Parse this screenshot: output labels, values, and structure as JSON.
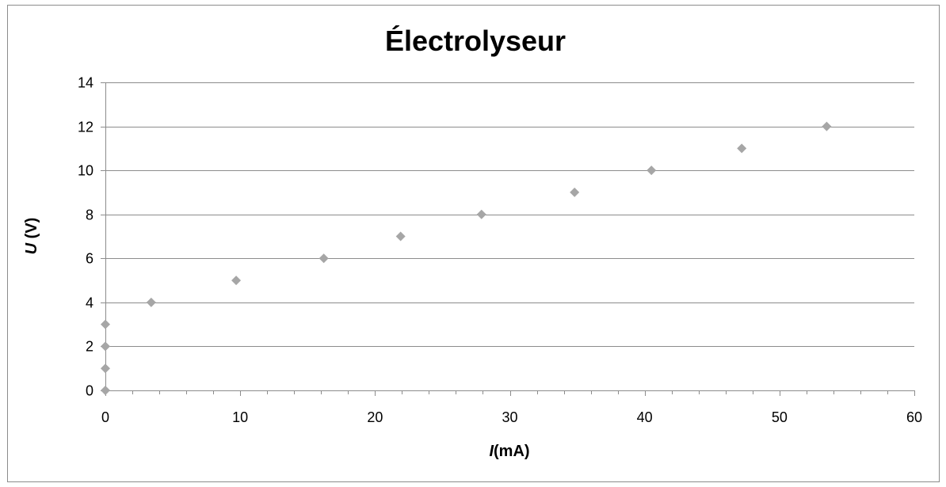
{
  "chart_data": {
    "type": "scatter",
    "title": "Électrolyseur",
    "xlabel": {
      "italic": "I",
      "rest": "(mA)"
    },
    "ylabel": {
      "italic": "U",
      "rest": " (V)"
    },
    "xlim": [
      0,
      60
    ],
    "ylim": [
      0,
      14
    ],
    "x_major_ticks": [
      0,
      10,
      20,
      30,
      40,
      50,
      60
    ],
    "y_major_ticks": [
      0,
      2,
      4,
      6,
      8,
      10,
      12,
      14
    ],
    "x_minor_step": 2,
    "grid": "horizontal",
    "legend": "none",
    "marker": "diamond",
    "marker_color": "#a6a6a6",
    "series": [
      {
        "points": [
          [
            0,
            0
          ],
          [
            0,
            1
          ],
          [
            0,
            2
          ],
          [
            0,
            3
          ],
          [
            3.4,
            4
          ],
          [
            9.7,
            5
          ],
          [
            16.2,
            6
          ],
          [
            21.9,
            7
          ],
          [
            27.9,
            8
          ],
          [
            34.8,
            9
          ],
          [
            40.5,
            10
          ],
          [
            47.2,
            11
          ],
          [
            53.5,
            12
          ]
        ]
      }
    ]
  }
}
